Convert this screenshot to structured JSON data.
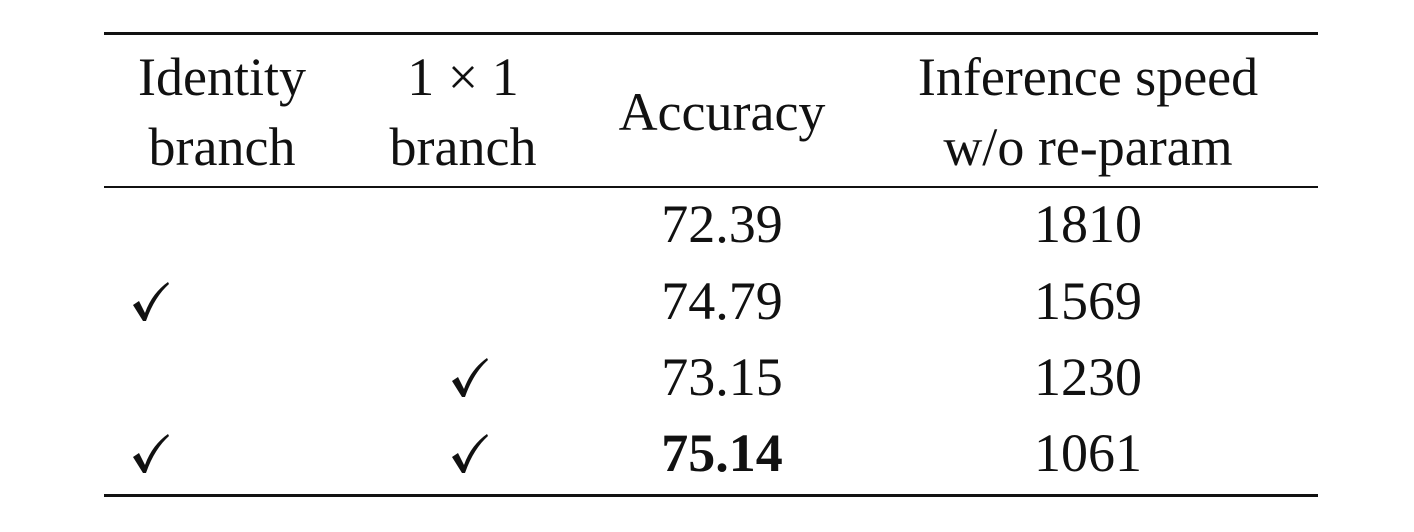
{
  "table": {
    "headers": [
      {
        "line1": "Identity",
        "line2": "branch"
      },
      {
        "line1": "1 × 1",
        "line2": "branch"
      },
      {
        "line1": "Accuracy",
        "line2": ""
      },
      {
        "line1": "Inference speed",
        "line2": "w/o re-param"
      }
    ],
    "rows": [
      {
        "identity": false,
        "conv1x1": false,
        "accuracy": "72.39",
        "speed": "1810",
        "best": false
      },
      {
        "identity": true,
        "conv1x1": false,
        "accuracy": "74.79",
        "speed": "1569",
        "best": false
      },
      {
        "identity": false,
        "conv1x1": true,
        "accuracy": "73.15",
        "speed": "1230",
        "best": false
      },
      {
        "identity": true,
        "conv1x1": true,
        "accuracy": "75.14",
        "speed": "1061",
        "best": true
      }
    ],
    "check_glyph": "✓",
    "text_color": "#111111"
  }
}
